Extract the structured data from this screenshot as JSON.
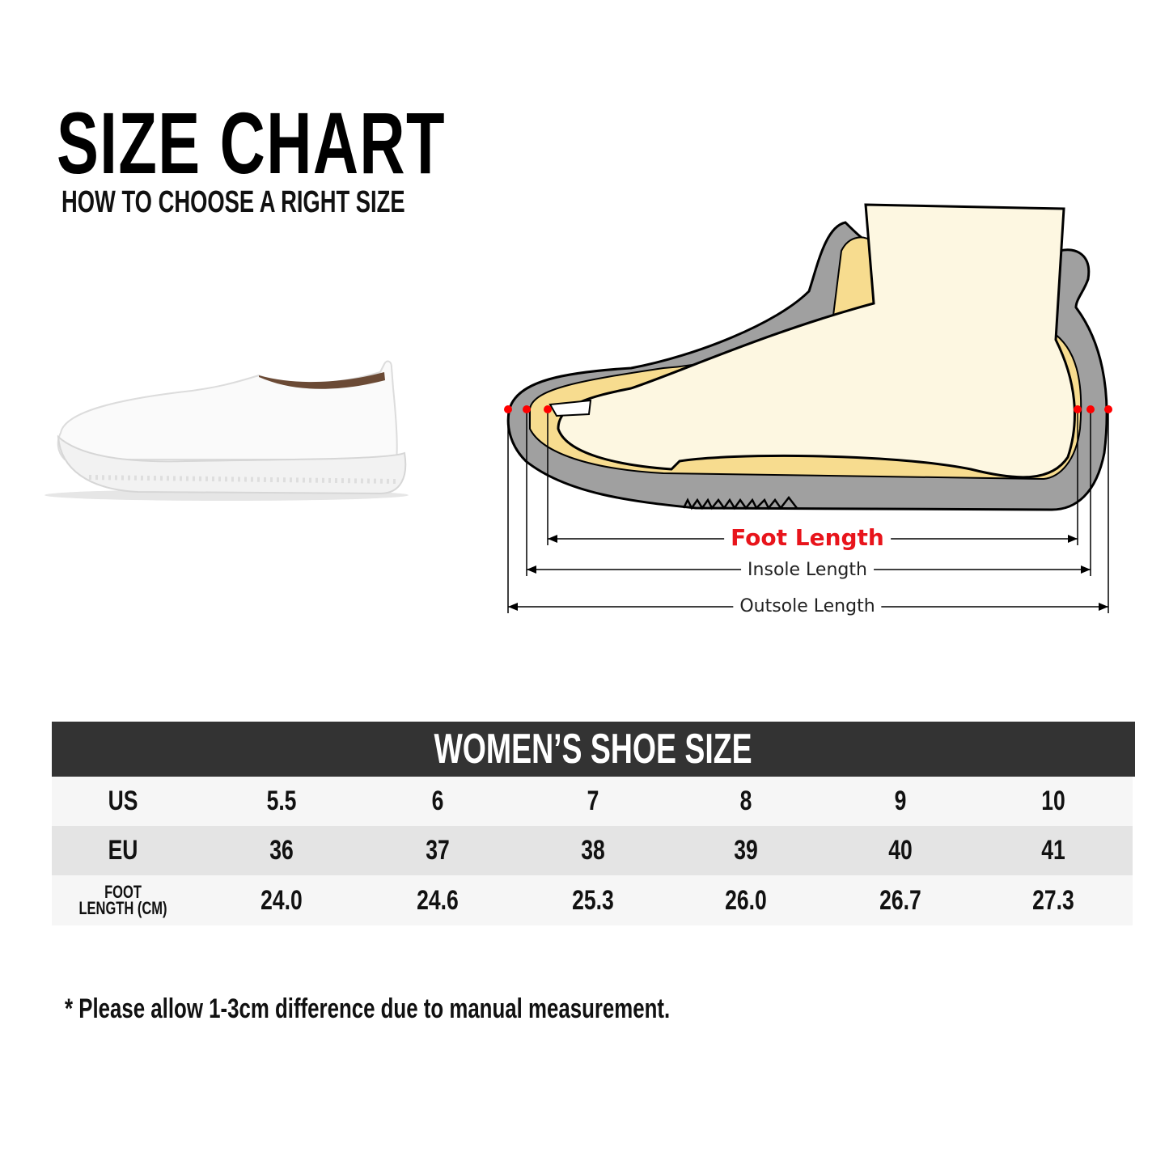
{
  "header": {
    "title": "SIZE CHART",
    "subtitle": "HOW TO CHOOSE A RIGHT SIZE"
  },
  "diagram": {
    "labels": {
      "foot_length": "Foot Length",
      "insole_length": "Insole Length",
      "outsole_length": "Outsole Length"
    },
    "colors": {
      "foot_length": "#e8141b",
      "marker_dots": "#ff0000",
      "shoe_outsole": "#a0a0a0",
      "insole": "#f7dc8f",
      "foot": "#fdf7e1"
    }
  },
  "table": {
    "title": "WOMEN’S SHOE SIZE",
    "rows": [
      {
        "label": "US",
        "values": [
          "5.5",
          "6",
          "7",
          "8",
          "9",
          "10"
        ]
      },
      {
        "label": "EU",
        "values": [
          "36",
          "37",
          "38",
          "39",
          "40",
          "41"
        ]
      },
      {
        "label_line1": "FOOT",
        "label_line2": "LENGTH (CM)",
        "values": [
          "24.0",
          "24.6",
          "25.3",
          "26.0",
          "26.7",
          "27.3"
        ]
      }
    ],
    "colors": {
      "header_bg": "#333333",
      "row_light": "#f6f6f6",
      "row_dark": "#e4e4e4"
    }
  },
  "footnote": "* Please allow 1-3cm difference due to manual measurement."
}
